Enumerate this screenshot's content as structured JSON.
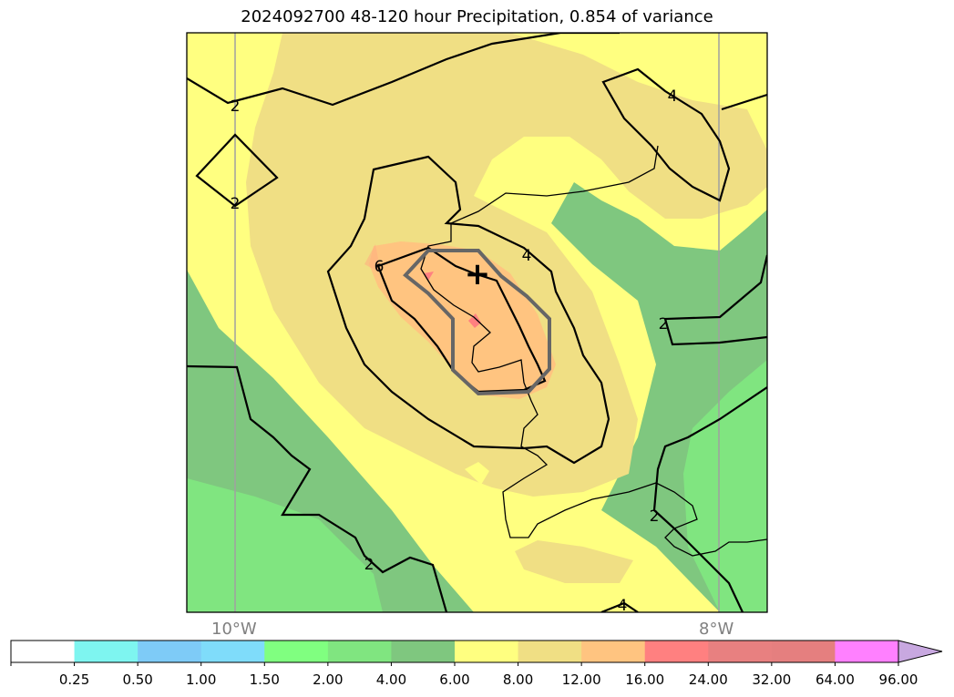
{
  "title": "2024092700 48-120 hour Precipitation, 0.854 of variance",
  "lon_labels": [
    "10°W",
    "8°W"
  ],
  "contour_labels": {
    "two": "2",
    "four": "4",
    "six": "6"
  },
  "center_marker": "+",
  "colorbar": {
    "ticks": [
      "0.25",
      "0.50",
      "1.00",
      "1.50",
      "2.00",
      "4.00",
      "6.00",
      "8.00",
      "12.00",
      "16.00",
      "24.00",
      "32.00",
      "64.00",
      "96.00"
    ],
    "colors": [
      "#ffffff",
      "#7ef5f0",
      "#7ecbf7",
      "#7fdcfa",
      "#80ff80",
      "#80e580",
      "#7fc77f",
      "#ffff80",
      "#f0df84",
      "#ffc480",
      "#ff8080",
      "#e88080",
      "#e57f7f",
      "#ff80ff",
      "#c8a8e0"
    ]
  },
  "map_colors": {
    "band_6_8": "#7fc77f",
    "band_4_6": "#80e580",
    "band_8_12": "#ffff80",
    "band_12_16": "#f0df84",
    "band_16_24": "#ffc480",
    "band_24_32": "#ffb180",
    "band_32_64": "#ff8080"
  }
}
